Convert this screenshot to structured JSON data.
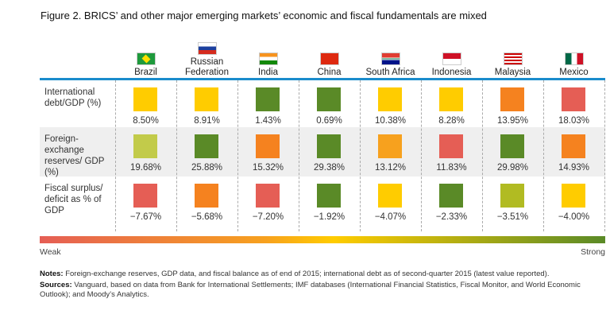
{
  "title": "Figure 2. BRICS’ and other major emerging markets’ economic and fiscal fundamentals are mixed",
  "chart_data": {
    "type": "heatmap",
    "categories": [
      "Brazil",
      "Russian Federation",
      "India",
      "China",
      "South Africa",
      "Indonesia",
      "Malaysia",
      "Mexico"
    ],
    "rows": [
      {
        "label": "International debt/GDP (%)",
        "values": [
          "8.50%",
          "8.91%",
          "1.43%",
          "0.69%",
          "10.38%",
          "8.28%",
          "13.95%",
          "18.03%"
        ],
        "colors": [
          "#FFCC00",
          "#FFCC00",
          "#5A8A27",
          "#5A8A27",
          "#FFCC00",
          "#FFCC00",
          "#F5821F",
          "#E55E55"
        ]
      },
      {
        "label": "Foreign-exchange reserves/ GDP (%)",
        "values": [
          "19.68%",
          "25.88%",
          "15.32%",
          "29.38%",
          "13.12%",
          "11.83%",
          "29.98%",
          "14.93%"
        ],
        "colors": [
          "#C2CB4A",
          "#5A8A27",
          "#F5821F",
          "#5A8A27",
          "#F7A11E",
          "#E55E55",
          "#5A8A27",
          "#F5821F"
        ]
      },
      {
        "label": "Fiscal surplus/ deficit as % of GDP",
        "values": [
          "−7.67%",
          "−5.68%",
          "−7.20%",
          "−1.92%",
          "−4.07%",
          "−2.33%",
          "−3.51%",
          "−4.00%"
        ],
        "colors": [
          "#E55E55",
          "#F5821F",
          "#E55E55",
          "#5A8A27",
          "#FFCC00",
          "#5A8A27",
          "#B1BB22",
          "#FFCC00"
        ]
      }
    ],
    "scale": {
      "low": "Weak",
      "high": "Strong"
    }
  },
  "notes_label": "Notes:",
  "notes": " Foreign-exchange reserves, GDP data, and fiscal balance as of end of 2015; international debt as of second-quarter 2015 (latest value reported).",
  "sources_label": "Sources:",
  "sources": " Vanguard, based on data from Bank for International Settlements; IMF databases (International Financial Statistics, Fiscal Monitor, and World Economic Outlook); and Moody’s Analytics."
}
